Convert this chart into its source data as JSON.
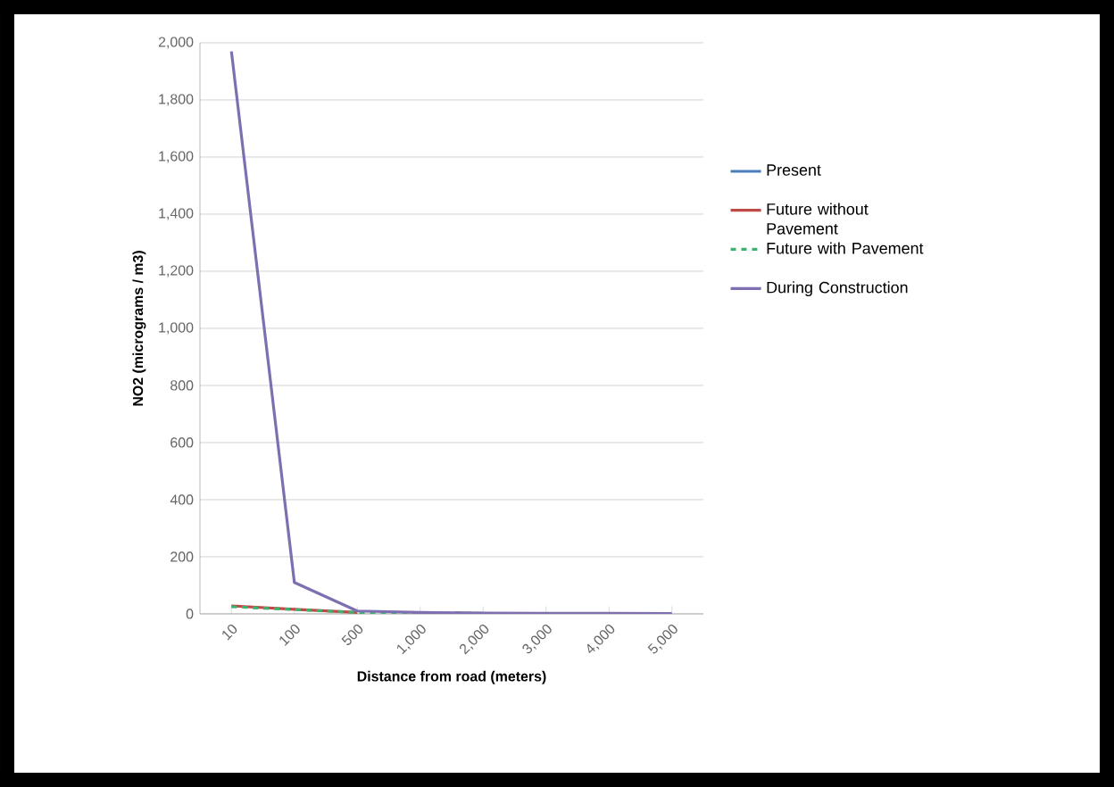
{
  "chart_data": {
    "type": "line",
    "xlabel": "Distance from road (meters)",
    "ylabel": "NO2 (micrograms / m3)",
    "categories": [
      "10",
      "100",
      "500",
      "1,000",
      "2,000",
      "3,000",
      "4,000",
      "5,000"
    ],
    "series": [
      {
        "name": "Present",
        "color": "#4a7ebb",
        "values": [
          null,
          null,
          null,
          null,
          null,
          null,
          null,
          null
        ]
      },
      {
        "name": "Future without Pavement",
        "color": "#be4b48",
        "values": [
          28,
          16,
          5,
          null,
          null,
          null,
          null,
          null
        ]
      },
      {
        "name": "Future with Pavement",
        "color": "#3cb371",
        "line_style": "dashed",
        "values": [
          25,
          15,
          5,
          3,
          2,
          null,
          null,
          null
        ]
      },
      {
        "name": "During Construction",
        "color": "#7e6fb0",
        "values": [
          1970,
          110,
          10,
          5,
          3,
          2,
          2,
          1
        ]
      }
    ],
    "ylim": [
      0,
      2000
    ],
    "yticks": [
      {
        "value": 0,
        "label": "0"
      },
      {
        "value": 200,
        "label": "200"
      },
      {
        "value": 400,
        "label": "400"
      },
      {
        "value": 600,
        "label": "600"
      },
      {
        "value": 800,
        "label": "800"
      },
      {
        "value": 1000,
        "label": "1,000"
      },
      {
        "value": 1200,
        "label": "1,200"
      },
      {
        "value": 1400,
        "label": "1,400"
      },
      {
        "value": 1600,
        "label": "1,600"
      },
      {
        "value": 1800,
        "label": "1,800"
      },
      {
        "value": 2000,
        "label": "2,000"
      }
    ],
    "grid": "y",
    "legend": "right",
    "marker": "none"
  }
}
